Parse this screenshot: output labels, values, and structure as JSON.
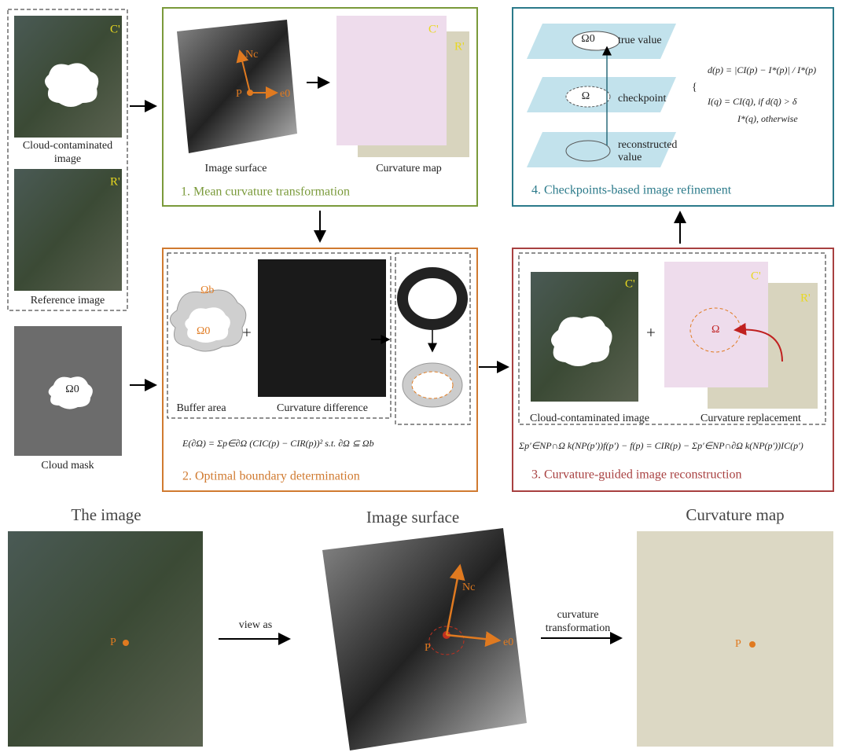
{
  "inputs": {
    "cloud_contaminated": [
      "Cloud-contaminated",
      "image"
    ],
    "reference": "Reference image",
    "cloud_mask": "Cloud mask",
    "mask_region": "Ω0",
    "c_mark": "C'",
    "r_mark": "R'"
  },
  "step1": {
    "title": "1. Mean curvature transformation",
    "image_surface": "Image surface",
    "curvature_map": "Curvature  map",
    "point": "P",
    "normal": "Nc",
    "tangent": "e0",
    "c_mark": "C'",
    "r_mark": "R'"
  },
  "step2": {
    "title": "2. Optimal boundary determination",
    "buffer_area": "Buffer area",
    "curvature_difference": "Curvature difference",
    "omega_b": "Ωb",
    "omega_0": "Ω0",
    "plus": "+",
    "formula": "E(∂Ω) = Σp∈∂Ω (CIC(p) − CIR(p))²     s.t. ∂Ω ⊆ Ωb"
  },
  "step3": {
    "title": "3. Curvature-guided image reconstruction",
    "cloud_contaminated": "Cloud-contaminated image",
    "curvature_replacement": "Curvature replacement",
    "omega": "Ω",
    "plus": "+",
    "c_mark": "C'",
    "c_mark2": "C'",
    "r_mark": "R'",
    "formula": "Σp′∈NP∩Ω k(NP(p′))f(p′) − f(p) = CIR(p) − Σp′∈NP∩∂Ω k(NP(p′))IC(p′)"
  },
  "step4": {
    "title": "4. Checkpoints-based image refinement",
    "true_value": "true value",
    "checkpoint": "checkpoint",
    "reconstructed_value": [
      "reconstructed",
      "value"
    ],
    "omega_0": "Ω0",
    "omega": "Ω",
    "formula_d": "d(p) = |CI(p) − I*(p)| / I*(p)",
    "formula_i_1": "I(q) = CI(q̄),   if d(q̄) > δ",
    "formula_i_2": "I*(q),   otherwise"
  },
  "bottom": {
    "the_image": "The image",
    "image_surface": "Image surface",
    "curvature_map": "Curvature map",
    "view_as": "view as",
    "curvature_transformation": [
      "curvature",
      "transformation"
    ],
    "point": "P",
    "point2": "P",
    "point3": "P",
    "normal": "Nc",
    "tangent": "e0"
  }
}
